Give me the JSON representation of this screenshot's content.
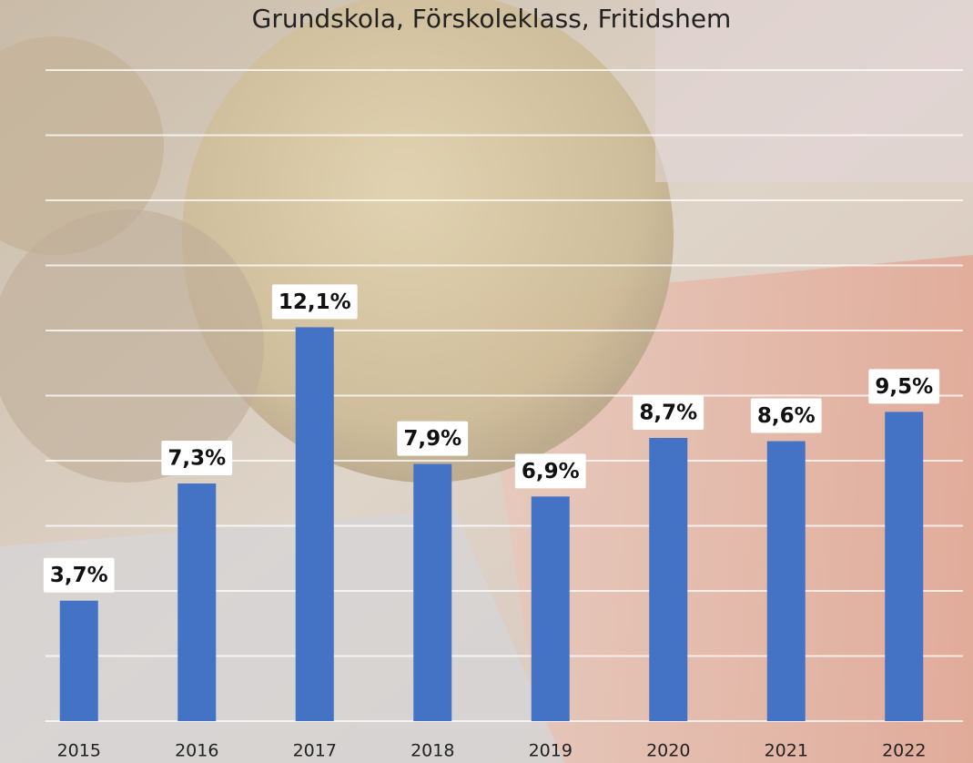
{
  "chart_data": {
    "type": "bar",
    "title": "Grundskola, Förskoleklass, Fritidshem",
    "categories": [
      "2015",
      "2016",
      "2017",
      "2018",
      "2019",
      "2020",
      "2021",
      "2022"
    ],
    "values": [
      3.7,
      7.3,
      12.1,
      7.9,
      6.9,
      8.7,
      8.6,
      9.5
    ],
    "value_labels": [
      "3,7%",
      "7,3%",
      "12,1%",
      "7,9%",
      "6,9%",
      "8,7%",
      "8,6%",
      "9,5%"
    ],
    "color": "#4472c4",
    "ylim": [
      0,
      20
    ],
    "yticks": [
      0,
      2,
      4,
      6,
      8,
      10,
      12,
      14,
      16,
      18,
      20
    ],
    "grid": true
  }
}
